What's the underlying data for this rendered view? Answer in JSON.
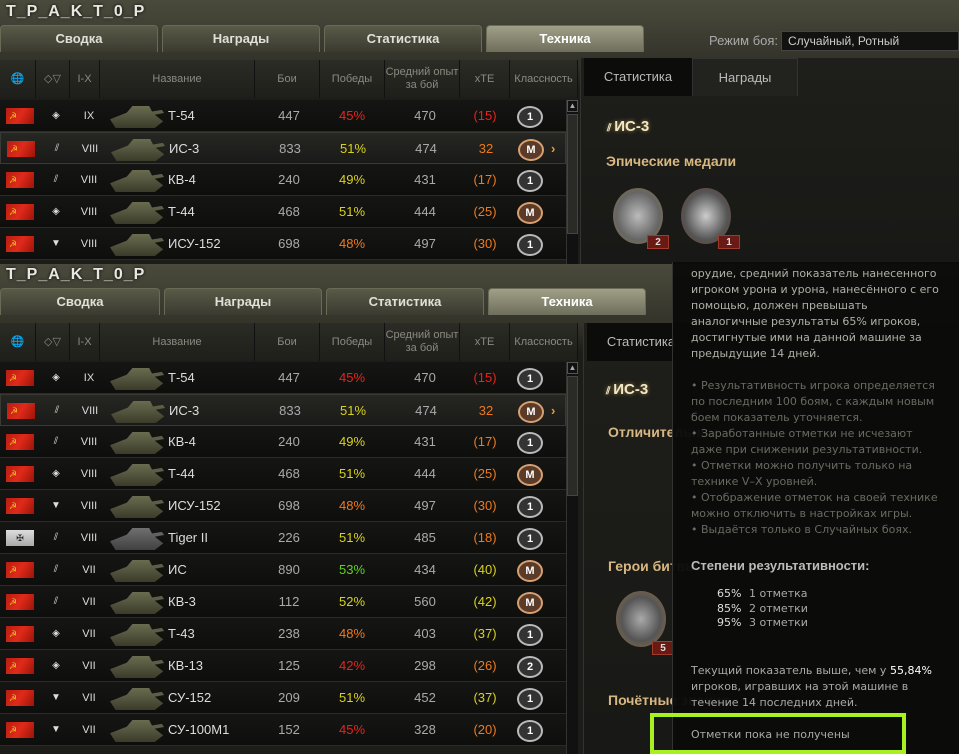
{
  "player": "T_P_A_K_T_0_P",
  "tabs": [
    "Сводка",
    "Награды",
    "Статистика",
    "Техника"
  ],
  "battle_mode": {
    "label": "Режим боя:",
    "value": "Случайный, Ротный"
  },
  "columns": {
    "nation": "globe-icon",
    "type": "tank-type-icon",
    "tier": "I-X",
    "name": "Название",
    "battles": "Бои",
    "wins": "Победы",
    "avg_xp": "Средний опыт за бой",
    "xte": "xTE",
    "class": "Классность"
  },
  "colors": {
    "red": "#e8231a",
    "orange": "#ee7a1e",
    "yellow": "#d8d21e",
    "green": "#5ed41e",
    "highlight": "#a8f020"
  },
  "vehicles": [
    {
      "flag": "ussr",
      "type": "medium",
      "tier": "IX",
      "name": "Т-54",
      "battles": "447",
      "wins": "45%",
      "wc": "red",
      "xp": "470",
      "xte": "(15)",
      "xc": "red",
      "badge": "1"
    },
    {
      "flag": "ussr",
      "type": "heavy",
      "tier": "VIII",
      "name": "ИС-3",
      "battles": "833",
      "wins": "51%",
      "wc": "yellow",
      "xp": "474",
      "xte": "32",
      "xc": "orange",
      "badge": "M",
      "selected": true
    },
    {
      "flag": "ussr",
      "type": "heavy",
      "tier": "VIII",
      "name": "КВ-4",
      "battles": "240",
      "wins": "49%",
      "wc": "yellow",
      "xp": "431",
      "xte": "(17)",
      "xc": "orange",
      "badge": "1"
    },
    {
      "flag": "ussr",
      "type": "medium",
      "tier": "VIII",
      "name": "Т-44",
      "battles": "468",
      "wins": "51%",
      "wc": "yellow",
      "xp": "444",
      "xte": "(25)",
      "xc": "orange",
      "badge": "M"
    },
    {
      "flag": "ussr",
      "type": "td",
      "tier": "VIII",
      "name": "ИСУ-152",
      "battles": "698",
      "wins": "48%",
      "wc": "orange",
      "xp": "497",
      "xte": "(30)",
      "xc": "orange",
      "badge": "1"
    },
    {
      "flag": "germany",
      "type": "heavy",
      "tier": "VIII",
      "name": "Tiger II",
      "battles": "226",
      "wins": "51%",
      "wc": "yellow",
      "xp": "485",
      "xte": "(18)",
      "xc": "orange",
      "badge": "1"
    },
    {
      "flag": "ussr",
      "type": "heavy",
      "tier": "VII",
      "name": "ИС",
      "battles": "890",
      "wins": "53%",
      "wc": "green",
      "xp": "434",
      "xte": "(40)",
      "xc": "yellow",
      "badge": "M"
    },
    {
      "flag": "ussr",
      "type": "heavy",
      "tier": "VII",
      "name": "КВ-3",
      "battles": "112",
      "wins": "52%",
      "wc": "yellow",
      "xp": "560",
      "xte": "(42)",
      "xc": "yellow",
      "badge": "M"
    },
    {
      "flag": "ussr",
      "type": "medium",
      "tier": "VII",
      "name": "Т-43",
      "battles": "238",
      "wins": "48%",
      "wc": "orange",
      "xp": "403",
      "xte": "(37)",
      "xc": "yellow",
      "badge": "1"
    },
    {
      "flag": "ussr",
      "type": "medium",
      "tier": "VII",
      "name": "КВ-13",
      "battles": "125",
      "wins": "42%",
      "wc": "red",
      "xp": "298",
      "xte": "(26)",
      "xc": "orange",
      "badge": "2"
    },
    {
      "flag": "ussr",
      "type": "td",
      "tier": "VII",
      "name": "СУ-152",
      "battles": "209",
      "wins": "51%",
      "wc": "yellow",
      "xp": "452",
      "xte": "(37)",
      "xc": "yellow",
      "badge": "1"
    },
    {
      "flag": "ussr",
      "type": "td",
      "tier": "VII",
      "name": "СУ-100М1",
      "battles": "152",
      "wins": "45%",
      "wc": "red",
      "xp": "328",
      "xte": "(20)",
      "xc": "orange",
      "badge": "1"
    }
  ],
  "detail": {
    "tabs": [
      "Статистика",
      "Награды"
    ],
    "vehicle": "ИС-3",
    "epic_title": "Эпические медали",
    "epic_counts": [
      "2",
      "1"
    ],
    "sections": [
      "Отличительные",
      "Герои битвы",
      "Почётные звания"
    ],
    "heroes_count": "5"
  },
  "tooltip": {
    "intro": "орудие, средний показатель нанесенного игроком урона и урона, нанесённого с его помощью, должен превышать аналогичные результаты 65% игроков, достигнутые ими на данной машине за предыдущие 14 дней.",
    "notes": [
      "• Результативность игрока определяется по последним 100 боям, с каждым новым боем показатель уточняется.",
      "• Заработанные отметки не исчезают даже при снижении результативности.",
      "• Отметки можно получить только на технике V–X уровней.",
      "• Отображение отметок на своей технике можно отключить в настройках игры.",
      "• Выдаётся только в Случайных боях."
    ],
    "levels_title": "Степени результативности:",
    "levels": [
      {
        "pct": "65%",
        "label": "1 отметка"
      },
      {
        "pct": "85%",
        "label": "2 отметки"
      },
      {
        "pct": "95%",
        "label": "3 отметки"
      }
    ],
    "current_prefix": "Текущий показатель выше, чем у ",
    "current_value": "55,84%",
    "current_suffix": "игроков, игравших на этой машине в течение 14 последних дней.",
    "status": "Отметки пока не получены"
  }
}
